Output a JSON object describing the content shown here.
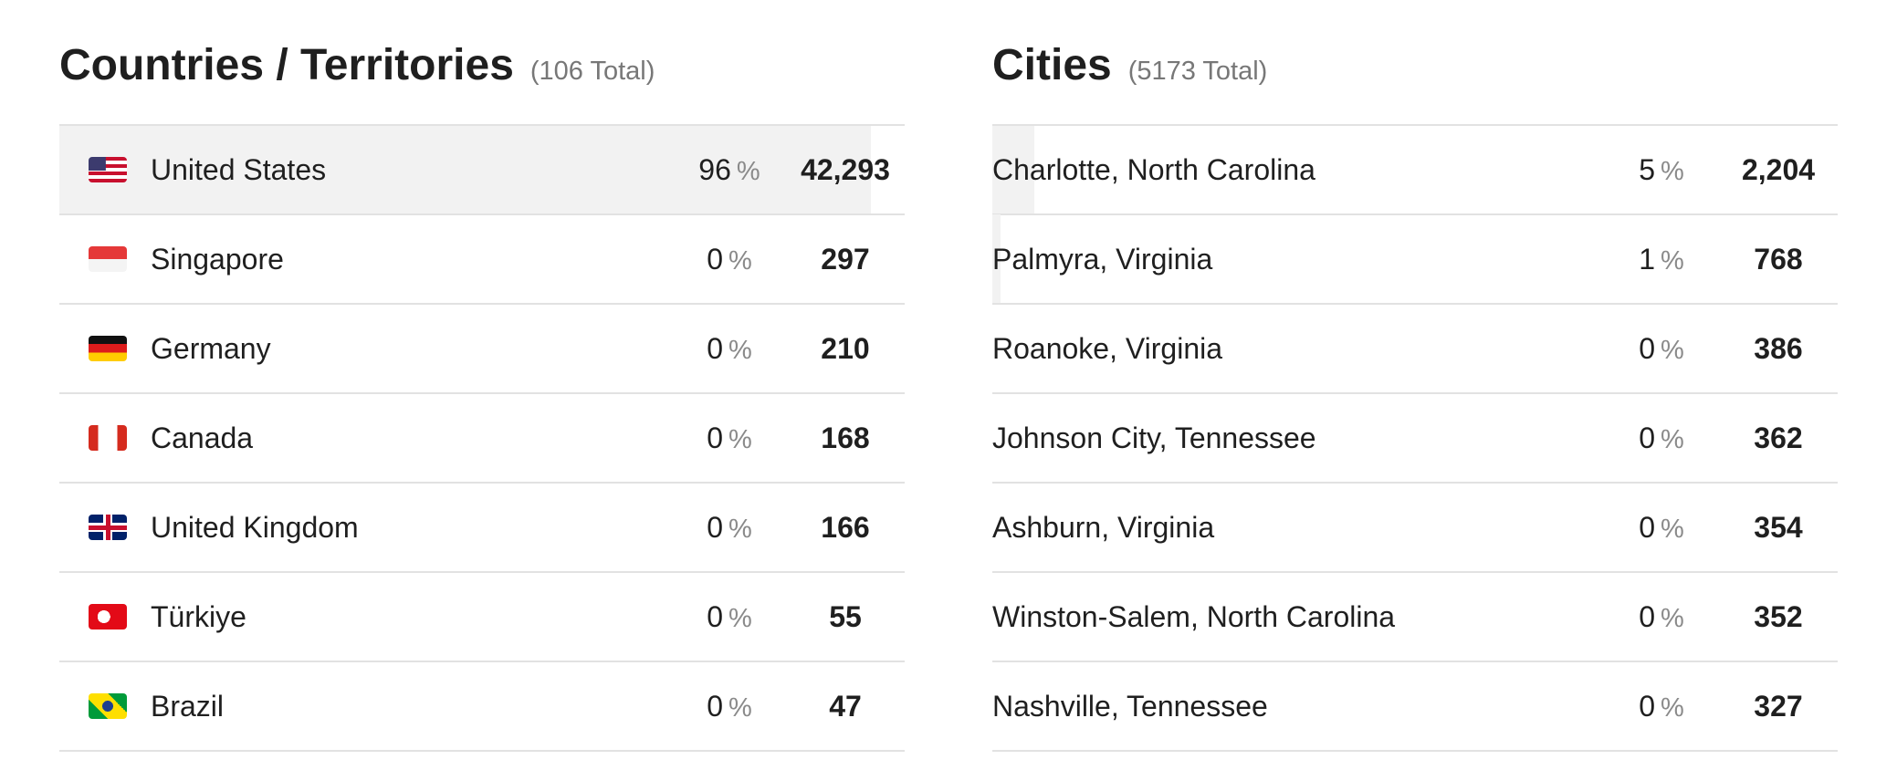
{
  "percent_symbol": "%",
  "panels": [
    {
      "title": "Countries / Territories",
      "total": "(106 Total)",
      "rows": [
        {
          "name": "United States",
          "percent": 96,
          "count": "42,293"
        },
        {
          "name": "Singapore",
          "percent": 0,
          "count": "297"
        },
        {
          "name": "Germany",
          "percent": 0,
          "count": "210"
        },
        {
          "name": "Canada",
          "percent": 0,
          "count": "168"
        },
        {
          "name": "United Kingdom",
          "percent": 0,
          "count": "166"
        },
        {
          "name": "Türkiye",
          "percent": 0,
          "count": "55"
        },
        {
          "name": "Brazil",
          "percent": 0,
          "count": "47"
        }
      ]
    },
    {
      "title": "Cities",
      "total": "(5173 Total)",
      "rows": [
        {
          "name": "Charlotte, North Carolina",
          "percent": 5,
          "count": "2,204"
        },
        {
          "name": "Palmyra, Virginia",
          "percent": 1,
          "count": "768"
        },
        {
          "name": "Roanoke, Virginia",
          "percent": 0,
          "count": "386"
        },
        {
          "name": "Johnson City, Tennessee",
          "percent": 0,
          "count": "362"
        },
        {
          "name": "Ashburn, Virginia",
          "percent": 0,
          "count": "354"
        },
        {
          "name": "Winston-Salem, North Carolina",
          "percent": 0,
          "count": "352"
        },
        {
          "name": "Nashville, Tennessee",
          "percent": 0,
          "count": "327"
        }
      ]
    }
  ]
}
